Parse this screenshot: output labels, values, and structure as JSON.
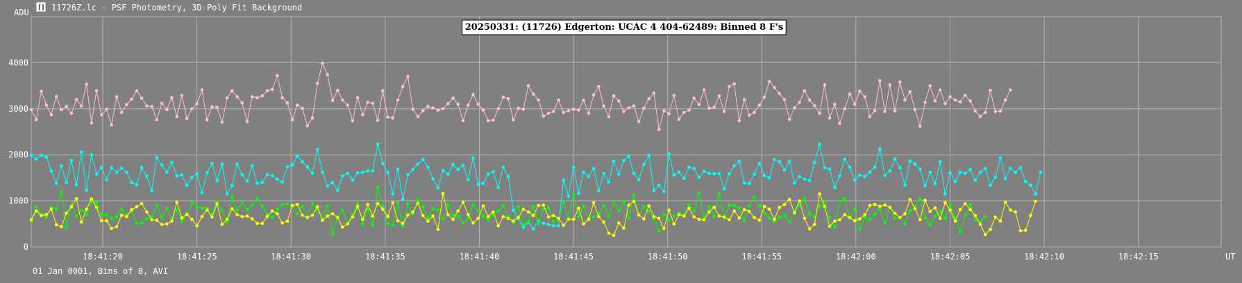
{
  "window": {
    "title": "11726Z.lc - PSF Photometry, 3D-Poly Fit Background",
    "icon": "app-icon"
  },
  "footer": {
    "info": "01 Jan 0001, Bins of 8, AVI"
  },
  "colors": {
    "background": "#808080",
    "grid": "#b4b4b4",
    "text": "#ffffff",
    "target": "#ffc0cb",
    "comp1": "#00ffff",
    "comp2": "#00ff00",
    "comp3": "#ffff00"
  },
  "chart_data": {
    "type": "line",
    "title": "20250331: (11726) Edgerton: UCAC 4 404-62489: Binned 8 F's",
    "xlabel": "UT",
    "ylabel": "ADU",
    "grid": true,
    "ylim": [
      0,
      5000
    ],
    "yticks": [
      0,
      1000,
      2000,
      3000,
      4000
    ],
    "xticks": [
      "18:41:20",
      "18:41:25",
      "18:41:30",
      "18:41:35",
      "18:41:40",
      "18:41:45",
      "18:41:50",
      "18:41:55",
      "18:42:00",
      "18:42:05",
      "18:42:10",
      "18:42:15"
    ],
    "xlim_seconds": {
      "start": "18:41:16.2",
      "end": "18:42:19.4",
      "step": 0.2667
    },
    "series": [
      {
        "color": "#ffc0cb",
        "values": [
          2980,
          2760,
          3380,
          3080,
          2870,
          3270,
          2980,
          3050,
          2900,
          3200,
          3060,
          3530,
          2690,
          3390,
          2870,
          2990,
          2650,
          3260,
          2920,
          3090,
          3210,
          3390,
          3230,
          3060,
          3050,
          2760,
          3120,
          2980,
          3240,
          2830,
          3290,
          2790,
          3000,
          3110,
          3410,
          2760,
          3040,
          3030,
          2710,
          3240,
          3390,
          3260,
          3130,
          2720,
          3260,
          3240,
          3280,
          3390,
          3420,
          3720,
          3240,
          3130,
          2760,
          3080,
          3010,
          2630,
          2800,
          3550,
          3990,
          3740,
          3180,
          3400,
          3190,
          3080,
          2740,
          3240,
          2870,
          3140,
          3120,
          2750,
          3390,
          2820,
          2800,
          3190,
          3480,
          3700,
          2990,
          2830,
          2960,
          3050,
          3020,
          2970,
          3000,
          3110,
          3230,
          3100,
          2740,
          3080,
          3310,
          3100,
          2970,
          2740,
          2750,
          3000,
          3250,
          3220,
          2760,
          3010,
          2990,
          3500,
          3320,
          3190,
          2840,
          2900,
          2940,
          3190,
          2920,
          2960,
          2990,
          2970,
          3180,
          2900,
          3300,
          3480,
          3060,
          2830,
          3280,
          3170,
          2940,
          3020,
          3060,
          2720,
          3010,
          3220,
          3340,
          2550,
          2960,
          2890,
          3290,
          2770,
          2920,
          2970,
          3230,
          3090,
          3410,
          3010,
          3030,
          3280,
          2940,
          3480,
          3540,
          2740,
          3200,
          2860,
          2920,
          3080,
          3250,
          3590,
          3460,
          3330,
          3200,
          2770,
          3020,
          3140,
          3390,
          3190,
          3070,
          2900,
          3520,
          2800,
          3100,
          2680,
          3000,
          3320,
          3100,
          3380,
          3260,
          2830,
          2960,
          3610,
          2940,
          3520,
          2950,
          3580,
          3190,
          3370,
          2980,
          2620,
          3140,
          3500,
          3170,
          3410,
          3110,
          3260,
          3190,
          3150,
          3290,
          3170,
          2950,
          2830,
          2920,
          3400,
          2940,
          2950,
          3190,
          3410
        ]
      },
      {
        "color": "#00ffff",
        "values": [
          1990,
          1910,
          1990,
          1950,
          1650,
          1380,
          1760,
          1400,
          1880,
          1350,
          2060,
          1230,
          2000,
          1580,
          1720,
          1460,
          1720,
          1620,
          1710,
          1620,
          1400,
          1350,
          1720,
          1540,
          1220,
          1940,
          1780,
          1620,
          1840,
          1540,
          1560,
          1340,
          1510,
          1590,
          1170,
          1610,
          1810,
          1440,
          1800,
          1150,
          1330,
          1800,
          1570,
          1430,
          1760,
          1380,
          1400,
          1570,
          1550,
          1470,
          1410,
          1740,
          1780,
          1970,
          1850,
          1740,
          1600,
          2120,
          1620,
          1320,
          1400,
          1230,
          1540,
          1600,
          1450,
          1610,
          1620,
          1650,
          1650,
          2230,
          1810,
          1620,
          1150,
          1690,
          1030,
          1570,
          1680,
          1800,
          1900,
          1730,
          1480,
          1280,
          1660,
          1580,
          1790,
          1680,
          1770,
          1460,
          1930,
          1360,
          1380,
          1580,
          1630,
          1290,
          1730,
          1530,
          800,
          620,
          430,
          530,
          390,
          560,
          510,
          490,
          460,
          460,
          1450,
          1100,
          1730,
          1160,
          1620,
          1530,
          1700,
          1220,
          1600,
          1410,
          1860,
          1580,
          1880,
          1970,
          1600,
          1460,
          1790,
          1990,
          1220,
          1340,
          1200,
          2020,
          1560,
          1620,
          1490,
          1730,
          1700,
          1510,
          1640,
          1600,
          1590,
          1590,
          1260,
          1590,
          1760,
          1860,
          1390,
          1380,
          1580,
          1810,
          1550,
          1500,
          1900,
          1850,
          1670,
          1860,
          1390,
          1530,
          1470,
          1440,
          1830,
          2230,
          1720,
          1690,
          1290,
          1540,
          1900,
          1730,
          1450,
          1560,
          1530,
          1620,
          1730,
          2130,
          1550,
          1650,
          1910,
          1720,
          1340,
          1860,
          1800,
          1690,
          1330,
          1620,
          1370,
          1850,
          1150,
          1610,
          1420,
          1620,
          1600,
          1680,
          1450,
          1620,
          1700,
          1340,
          1510,
          1930,
          1480,
          1710,
          1620,
          1720,
          1420,
          1340,
          1150,
          1620
        ]
      },
      {
        "color": "#00ff00",
        "values": [
          560,
          870,
          700,
          650,
          860,
          820,
          1200,
          430,
          910,
          670,
          800,
          700,
          960,
          960,
          710,
          700,
          620,
          650,
          820,
          700,
          780,
          510,
          520,
          610,
          650,
          900,
          640,
          830,
          620,
          800,
          550,
          710,
          960,
          870,
          840,
          850,
          710,
          980,
          790,
          540,
          1090,
          800,
          960,
          810,
          910,
          1050,
          880,
          710,
          640,
          810,
          920,
          930,
          890,
          720,
          880,
          650,
          940,
          790,
          610,
          890,
          280,
          660,
          790,
          510,
          710,
          940,
          500,
          820,
          470,
          1300,
          870,
          500,
          480,
          960,
          450,
          940,
          710,
          1030,
          870,
          630,
          830,
          800,
          610,
          920,
          690,
          660,
          520,
          620,
          920,
          780,
          670,
          580,
          700,
          780,
          890,
          660,
          530,
          870,
          490,
          550,
          880,
          500,
          820,
          850,
          550,
          580,
          970,
          630,
          1140,
          660,
          890,
          620,
          650,
          720,
          890,
          660,
          980,
          780,
          980,
          620,
          1120,
          690,
          880,
          770,
          610,
          340,
          710,
          580,
          670,
          740,
          710,
          920,
          780,
          1170,
          620,
          880,
          660,
          1160,
          620,
          910,
          900,
          850,
          560,
          890,
          1080,
          900,
          730,
          630,
          550,
          650,
          680,
          550,
          780,
          900,
          1050,
          720,
          650,
          890,
          980,
          640,
          430,
          990,
          1050,
          620,
          830,
          390,
          640,
          590,
          710,
          820,
          510,
          850,
          620,
          640,
          500,
          780,
          880,
          1040,
          630,
          480,
          670,
          780,
          620,
          930,
          630,
          330,
          680,
          920,
          590,
          540,
          660
        ]
      },
      {
        "color": "#ffff00",
        "values": [
          590,
          780,
          680,
          700,
          820,
          480,
          440,
          730,
          870,
          1050,
          540,
          820,
          1040,
          860,
          570,
          570,
          400,
          440,
          690,
          660,
          810,
          870,
          940,
          760,
          590,
          580,
          490,
          500,
          560,
          970,
          630,
          710,
          600,
          460,
          660,
          800,
          650,
          940,
          490,
          600,
          830,
          700,
          660,
          670,
          610,
          510,
          510,
          660,
          780,
          720,
          520,
          560,
          900,
          920,
          690,
          640,
          690,
          870,
          580,
          670,
          720,
          640,
          430,
          500,
          650,
          880,
          600,
          920,
          670,
          940,
          820,
          660,
          960,
          570,
          510,
          690,
          760,
          950,
          680,
          560,
          670,
          380,
          1160,
          700,
          600,
          780,
          970,
          700,
          520,
          620,
          890,
          660,
          760,
          460,
          660,
          620,
          560,
          640,
          820,
          760,
          680,
          900,
          910,
          650,
          680,
          620,
          470,
          600,
          600,
          840,
          500,
          600,
          960,
          660,
          540,
          300,
          250,
          520,
          410,
          910,
          990,
          690,
          610,
          890,
          660,
          620,
          400,
          800,
          500,
          700,
          670,
          840,
          650,
          600,
          590,
          760,
          860,
          670,
          650,
          590,
          780,
          630,
          810,
          770,
          640,
          580,
          880,
          820,
          600,
          860,
          920,
          1030,
          740,
          1000,
          620,
          390,
          490,
          1150,
          880,
          450,
          560,
          590,
          700,
          640,
          570,
          610,
          700,
          900,
          920,
          880,
          910,
          860,
          730,
          640,
          720,
          1030,
          830,
          590,
          1010,
          770,
          850,
          620,
          960,
          800,
          560,
          810,
          940,
          810,
          680,
          490,
          270,
          380,
          650,
          560,
          970,
          800,
          760,
          350,
          360,
          680,
          990
        ]
      }
    ]
  }
}
